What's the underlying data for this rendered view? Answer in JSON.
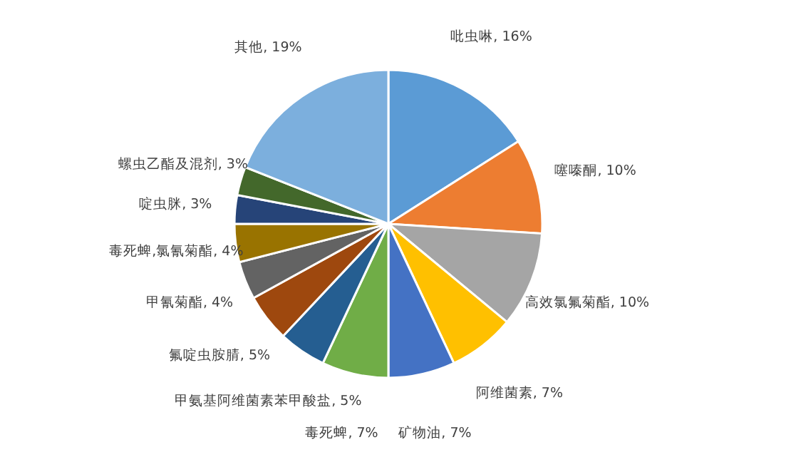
{
  "chart_data": {
    "type": "pie",
    "categories": [
      "吡虫啉",
      "噻嗪酮",
      "高效氯氟菊酯",
      "阿维菌素",
      "矿物油",
      "毒死蜱",
      "甲氨基阿维菌素苯甲酸盐",
      "氟啶虫胺腈",
      "甲氰菊酯",
      "毒死蜱,氯氰菊酯",
      "啶虫脒",
      "螺虫乙酯及混剂",
      "其他"
    ],
    "values": [
      16,
      10,
      10,
      7,
      7,
      7,
      5,
      5,
      4,
      4,
      3,
      3,
      19
    ],
    "value_labels": [
      "16%",
      "10%",
      "10%",
      "7%",
      "7%",
      "7%",
      "5%",
      "5%",
      "4%",
      "4%",
      "3%",
      "3%",
      "19%"
    ],
    "colors": [
      "#5b9bd5",
      "#ed7d31",
      "#a5a5a5",
      "#ffc000",
      "#4472c4",
      "#70ad47",
      "#255e91",
      "#9e480e",
      "#636363",
      "#997300",
      "#264478",
      "#43682b",
      "#7cafdd"
    ],
    "legend": false
  }
}
